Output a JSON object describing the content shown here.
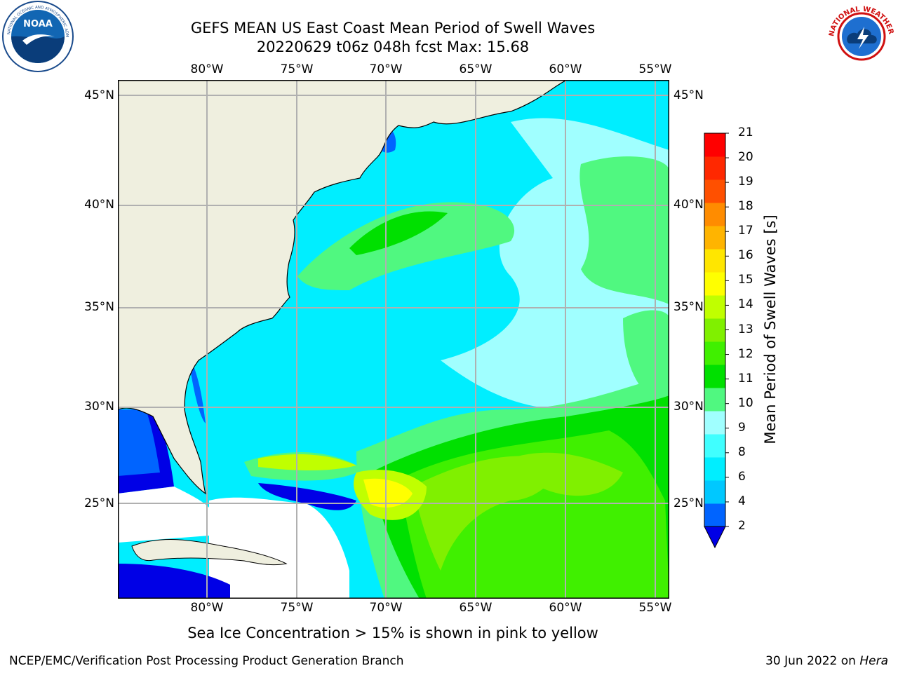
{
  "title_line1": "GEFS MEAN US East Coast Mean Period of Swell Waves",
  "title_line2": "20220629 t06z 048h fcst   Max: 15.68",
  "lon_labels": [
    "80°W",
    "75°W",
    "70°W",
    "65°W",
    "60°W",
    "55°W"
  ],
  "lat_labels": [
    "45°N",
    "40°N",
    "35°N",
    "30°N",
    "25°N"
  ],
  "colorbar": {
    "title": "Mean Period of Swell Waves [s]",
    "ticks": [
      "21",
      "20",
      "19",
      "18",
      "17",
      "16",
      "15",
      "14",
      "13",
      "12",
      "11",
      "10",
      "9",
      "8",
      "6",
      "4",
      "2"
    ],
    "colors": [
      "#0000e6",
      "#0064ff",
      "#00c8ff",
      "#00eeff",
      "#40ffff",
      "#a0ffff",
      "#50f880",
      "#00e000",
      "#40f000",
      "#80f000",
      "#c0ff00",
      "#ffff00",
      "#ffe600",
      "#ffb400",
      "#ff8c00",
      "#ff5000",
      "#ff2800",
      "#ff0000"
    ]
  },
  "footnote": "Sea Ice Concentration > 15% is shown in pink to yellow",
  "credit": "NCEP/EMC/Verification Post Processing Product Generation Branch",
  "run_date": "30 Jun 2022 on",
  "run_host": "Hera",
  "logos": {
    "noaa_text": "NOAA",
    "nws_text": "NATIONAL WEATHER SERVICE"
  },
  "colors": {
    "land": "#efefdf",
    "grid": "#b0b0b0",
    "no_data": "#ffffff"
  }
}
